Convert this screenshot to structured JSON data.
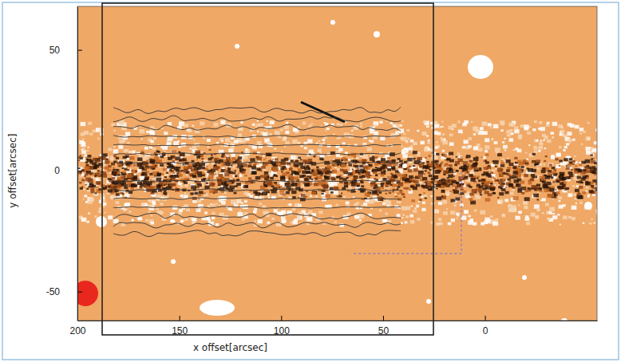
{
  "chart_data": {
    "type": "image",
    "xlabel": "x offset[arcsec]",
    "ylabel": "y offset[arcsec]",
    "xlim": [
      200,
      -55
    ],
    "ylim": [
      -62,
      68
    ],
    "xticks": [
      200,
      150,
      100,
      50,
      0
    ],
    "yticks": [
      -50,
      0,
      50
    ]
  }
}
